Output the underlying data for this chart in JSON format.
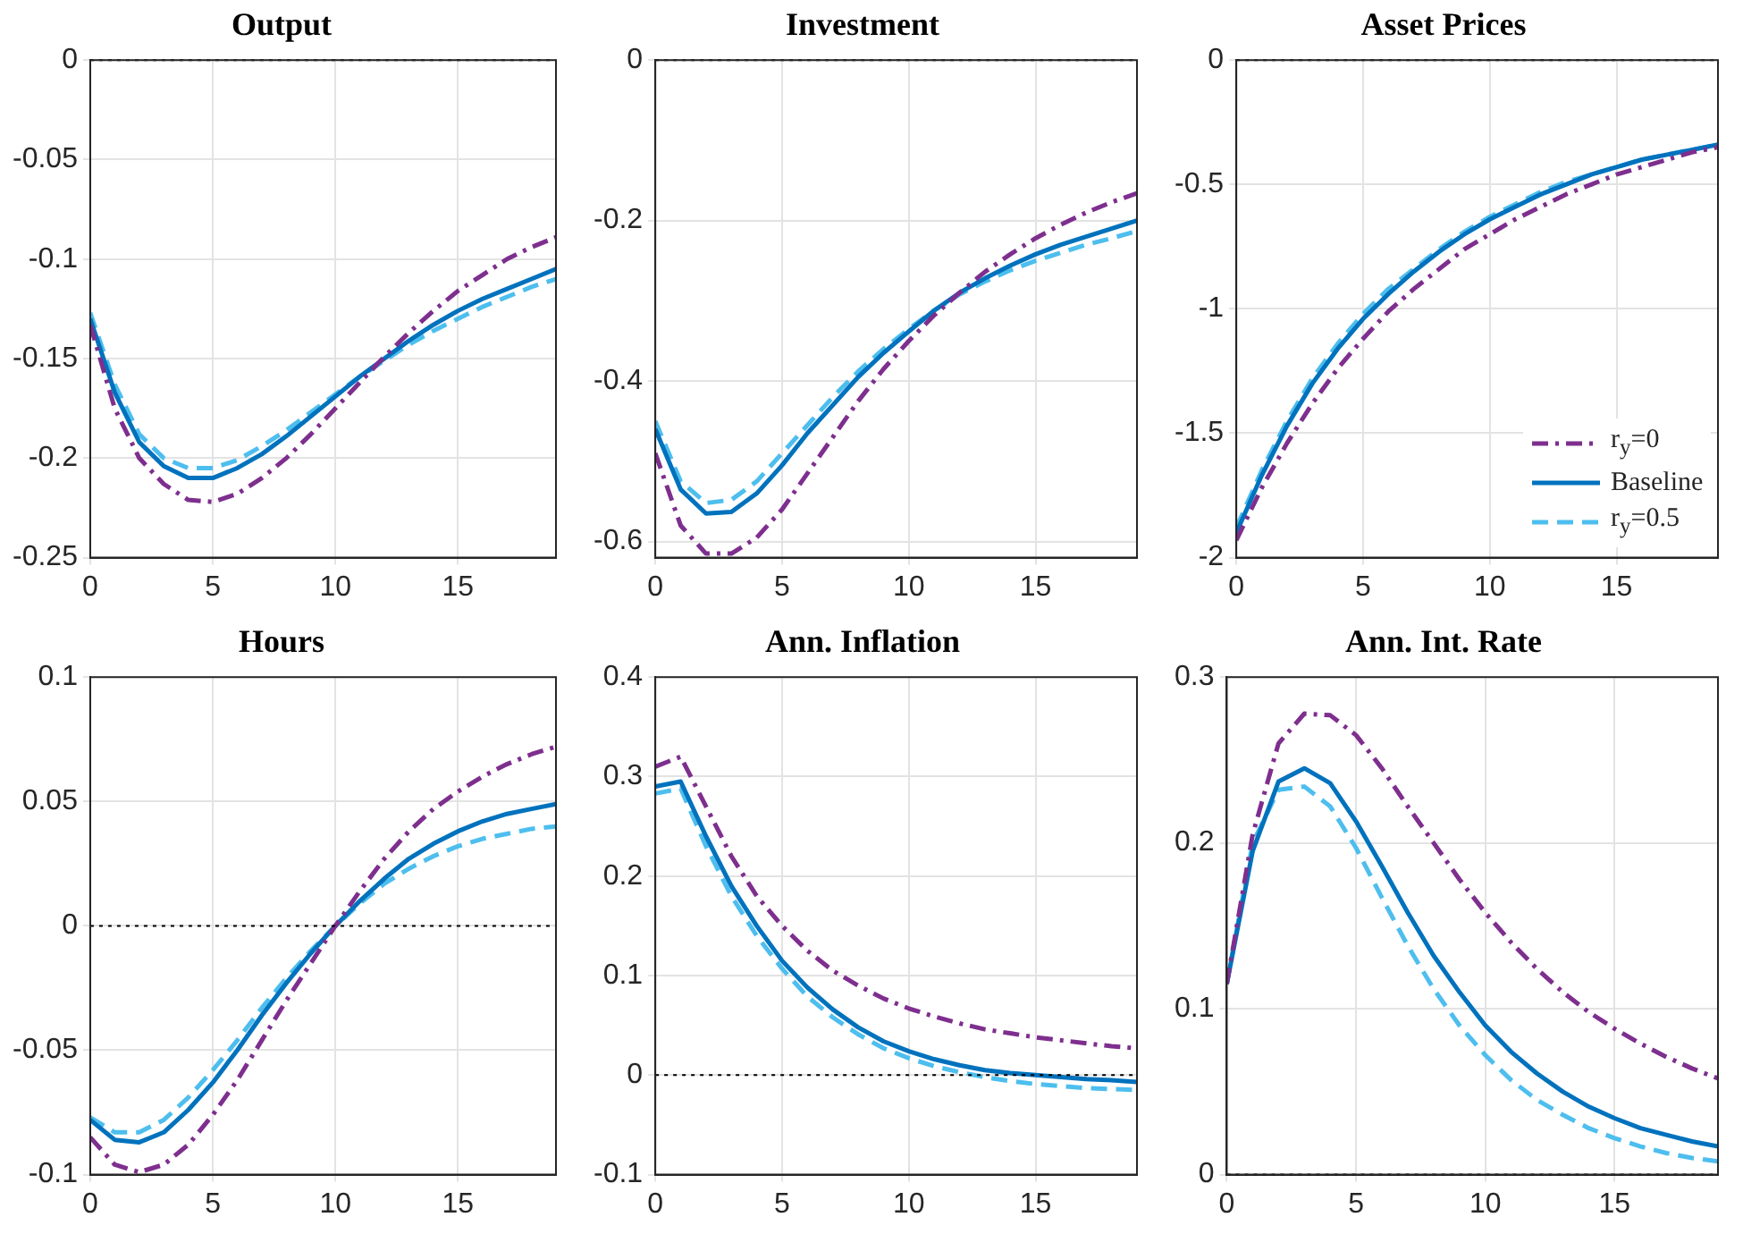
{
  "chart_data": [
    {
      "type": "line",
      "title": "Output",
      "x": [
        0,
        1,
        2,
        3,
        4,
        5,
        6,
        7,
        8,
        9,
        10,
        11,
        12,
        13,
        14,
        15,
        16,
        17,
        18,
        19
      ],
      "xlim": [
        0,
        19
      ],
      "xticks": [
        0,
        5,
        10,
        15
      ],
      "ylim": [
        -0.25,
        0
      ],
      "yticks": [
        -0.25,
        -0.2,
        -0.15,
        -0.1,
        -0.05,
        0
      ],
      "grid": true,
      "ref_lines": [
        {
          "axis": "y",
          "value": 0,
          "color": "#000000",
          "line_style": "dotted"
        }
      ],
      "series": [
        {
          "color": "#7e2f8e",
          "line_style": "dashdot",
          "values": [
            -0.133,
            -0.175,
            -0.2,
            -0.213,
            -0.221,
            -0.222,
            -0.218,
            -0.21,
            -0.2,
            -0.188,
            -0.175,
            -0.162,
            -0.149,
            -0.137,
            -0.126,
            -0.116,
            -0.108,
            -0.1,
            -0.094,
            -0.089
          ]
        },
        {
          "color": "#0072bd",
          "line_style": "solid",
          "values": [
            -0.13,
            -0.167,
            -0.192,
            -0.204,
            -0.21,
            -0.21,
            -0.205,
            -0.198,
            -0.189,
            -0.179,
            -0.169,
            -0.159,
            -0.15,
            -0.141,
            -0.133,
            -0.126,
            -0.12,
            -0.115,
            -0.11,
            -0.105
          ]
        },
        {
          "color": "#4dbeee",
          "line_style": "dashed",
          "values": [
            -0.127,
            -0.163,
            -0.188,
            -0.2,
            -0.205,
            -0.205,
            -0.201,
            -0.194,
            -0.186,
            -0.177,
            -0.168,
            -0.159,
            -0.151,
            -0.143,
            -0.136,
            -0.13,
            -0.124,
            -0.119,
            -0.114,
            -0.11
          ]
        }
      ]
    },
    {
      "type": "line",
      "title": "Investment",
      "x": [
        0,
        1,
        2,
        3,
        4,
        5,
        6,
        7,
        8,
        9,
        10,
        11,
        12,
        13,
        14,
        15,
        16,
        17,
        18,
        19
      ],
      "xlim": [
        0,
        19
      ],
      "xticks": [
        0,
        5,
        10,
        15
      ],
      "ylim": [
        -0.62,
        0
      ],
      "yticks": [
        -0.6,
        -0.4,
        -0.2,
        0
      ],
      "grid": true,
      "ref_lines": [
        {
          "axis": "y",
          "value": 0,
          "color": "#000000",
          "line_style": "dotted"
        }
      ],
      "series": [
        {
          "color": "#7e2f8e",
          "line_style": "dashdot",
          "values": [
            -0.49,
            -0.58,
            -0.615,
            -0.615,
            -0.595,
            -0.56,
            -0.515,
            -0.47,
            -0.425,
            -0.385,
            -0.35,
            -0.318,
            -0.29,
            -0.264,
            -0.242,
            -0.222,
            -0.205,
            -0.19,
            -0.177,
            -0.166
          ]
        },
        {
          "color": "#0072bd",
          "line_style": "solid",
          "values": [
            -0.46,
            -0.535,
            -0.565,
            -0.563,
            -0.54,
            -0.505,
            -0.465,
            -0.43,
            -0.395,
            -0.365,
            -0.338,
            -0.312,
            -0.29,
            -0.272,
            -0.256,
            -0.242,
            -0.23,
            -0.22,
            -0.21,
            -0.2
          ]
        },
        {
          "color": "#4dbeee",
          "line_style": "dashed",
          "values": [
            -0.45,
            -0.525,
            -0.552,
            -0.548,
            -0.525,
            -0.49,
            -0.455,
            -0.42,
            -0.388,
            -0.36,
            -0.335,
            -0.312,
            -0.292,
            -0.276,
            -0.262,
            -0.25,
            -0.24,
            -0.23,
            -0.222,
            -0.213
          ]
        }
      ]
    },
    {
      "type": "line",
      "title": "Asset Prices",
      "x": [
        0,
        1,
        2,
        3,
        4,
        5,
        6,
        7,
        8,
        9,
        10,
        11,
        12,
        13,
        14,
        15,
        16,
        17,
        18,
        19
      ],
      "xlim": [
        0,
        19
      ],
      "xticks": [
        0,
        5,
        10,
        15
      ],
      "ylim": [
        -2,
        0
      ],
      "yticks": [
        -2,
        -1.5,
        -1,
        -0.5,
        0
      ],
      "grid": true,
      "legend": "bottom right",
      "ref_lines": [
        {
          "axis": "y",
          "value": 0,
          "color": "#000000",
          "line_style": "dotted"
        }
      ],
      "series": [
        {
          "name": "r$_{y}$=0",
          "color": "#7e2f8e",
          "line_style": "dashdot",
          "values": [
            -1.93,
            -1.72,
            -1.54,
            -1.38,
            -1.24,
            -1.12,
            -1.01,
            -0.92,
            -0.84,
            -0.76,
            -0.7,
            -0.64,
            -0.59,
            -0.54,
            -0.5,
            -0.46,
            -0.43,
            -0.4,
            -0.37,
            -0.35
          ]
        },
        {
          "name": "Baseline",
          "color": "#0072bd",
          "line_style": "solid",
          "values": [
            -1.9,
            -1.67,
            -1.47,
            -1.3,
            -1.16,
            -1.04,
            -0.94,
            -0.85,
            -0.77,
            -0.7,
            -0.64,
            -0.59,
            -0.54,
            -0.5,
            -0.46,
            -0.43,
            -0.4,
            -0.38,
            -0.36,
            -0.34
          ]
        },
        {
          "name": "r$_{y}$=0.5",
          "color": "#4dbeee",
          "line_style": "dashed",
          "values": [
            -1.88,
            -1.65,
            -1.45,
            -1.28,
            -1.14,
            -1.02,
            -0.92,
            -0.84,
            -0.76,
            -0.69,
            -0.63,
            -0.58,
            -0.53,
            -0.49,
            -0.46,
            -0.43,
            -0.4,
            -0.38,
            -0.36,
            -0.34
          ]
        }
      ]
    },
    {
      "type": "line",
      "title": "Hours",
      "x": [
        0,
        1,
        2,
        3,
        4,
        5,
        6,
        7,
        8,
        9,
        10,
        11,
        12,
        13,
        14,
        15,
        16,
        17,
        18,
        19
      ],
      "xlim": [
        0,
        19
      ],
      "xticks": [
        0,
        5,
        10,
        15
      ],
      "ylim": [
        -0.1,
        0.1
      ],
      "yticks": [
        -0.1,
        -0.05,
        0,
        0.05,
        0.1
      ],
      "grid": true,
      "ref_lines": [
        {
          "axis": "y",
          "value": 0,
          "color": "#000000",
          "line_style": "dotted"
        }
      ],
      "series": [
        {
          "color": "#7e2f8e",
          "line_style": "dashdot",
          "values": [
            -0.085,
            -0.096,
            -0.099,
            -0.096,
            -0.088,
            -0.076,
            -0.062,
            -0.046,
            -0.03,
            -0.015,
            0,
            0.014,
            0.027,
            0.038,
            0.047,
            0.054,
            0.06,
            0.065,
            0.069,
            0.072
          ]
        },
        {
          "color": "#0072bd",
          "line_style": "solid",
          "values": [
            -0.078,
            -0.086,
            -0.087,
            -0.083,
            -0.074,
            -0.063,
            -0.05,
            -0.036,
            -0.023,
            -0.011,
            0,
            0.01,
            0.019,
            0.027,
            0.033,
            0.038,
            0.042,
            0.045,
            0.047,
            0.049
          ]
        },
        {
          "color": "#4dbeee",
          "line_style": "dashed",
          "values": [
            -0.077,
            -0.083,
            -0.083,
            -0.078,
            -0.069,
            -0.058,
            -0.046,
            -0.033,
            -0.021,
            -0.01,
            0,
            0.009,
            0.017,
            0.023,
            0.028,
            0.032,
            0.035,
            0.037,
            0.039,
            0.04
          ]
        }
      ]
    },
    {
      "type": "line",
      "title": "Ann. Inflation",
      "x": [
        0,
        1,
        2,
        3,
        4,
        5,
        6,
        7,
        8,
        9,
        10,
        11,
        12,
        13,
        14,
        15,
        16,
        17,
        18,
        19
      ],
      "xlim": [
        0,
        19
      ],
      "xticks": [
        0,
        5,
        10,
        15
      ],
      "ylim": [
        -0.1,
        0.4
      ],
      "yticks": [
        -0.1,
        0,
        0.1,
        0.2,
        0.3,
        0.4
      ],
      "grid": true,
      "ref_lines": [
        {
          "axis": "y",
          "value": 0,
          "color": "#000000",
          "line_style": "dotted"
        }
      ],
      "series": [
        {
          "color": "#7e2f8e",
          "line_style": "dashdot",
          "values": [
            0.31,
            0.32,
            0.27,
            0.22,
            0.18,
            0.15,
            0.125,
            0.105,
            0.09,
            0.077,
            0.067,
            0.059,
            0.052,
            0.046,
            0.042,
            0.038,
            0.035,
            0.032,
            0.029,
            0.027
          ]
        },
        {
          "color": "#0072bd",
          "line_style": "solid",
          "values": [
            0.29,
            0.295,
            0.24,
            0.19,
            0.15,
            0.115,
            0.088,
            0.066,
            0.048,
            0.034,
            0.024,
            0.016,
            0.01,
            0.005,
            0.002,
            0,
            -0.002,
            -0.004,
            -0.005,
            -0.007
          ]
        },
        {
          "color": "#4dbeee",
          "line_style": "dashed",
          "values": [
            0.283,
            0.288,
            0.23,
            0.18,
            0.14,
            0.107,
            0.079,
            0.058,
            0.041,
            0.027,
            0.017,
            0.009,
            0.003,
            -0.002,
            -0.006,
            -0.009,
            -0.011,
            -0.013,
            -0.014,
            -0.015
          ]
        }
      ]
    },
    {
      "type": "line",
      "title": "Ann. Int. Rate",
      "x": [
        0,
        1,
        2,
        3,
        4,
        5,
        6,
        7,
        8,
        9,
        10,
        11,
        12,
        13,
        14,
        15,
        16,
        17,
        18,
        19
      ],
      "xlim": [
        0,
        19
      ],
      "xticks": [
        0,
        5,
        10,
        15
      ],
      "ylim": [
        0,
        0.3
      ],
      "yticks": [
        0,
        0.1,
        0.2,
        0.3
      ],
      "grid": true,
      "ref_lines": [
        {
          "axis": "y",
          "value": 0,
          "color": "#000000",
          "line_style": "dotted"
        }
      ],
      "series": [
        {
          "color": "#7e2f8e",
          "line_style": "dashdot",
          "values": [
            0.115,
            0.205,
            0.26,
            0.278,
            0.277,
            0.265,
            0.245,
            0.222,
            0.2,
            0.178,
            0.158,
            0.14,
            0.124,
            0.11,
            0.098,
            0.088,
            0.079,
            0.071,
            0.064,
            0.058
          ]
        },
        {
          "color": "#0072bd",
          "line_style": "solid",
          "values": [
            0.115,
            0.195,
            0.237,
            0.245,
            0.236,
            0.213,
            0.186,
            0.158,
            0.132,
            0.11,
            0.09,
            0.074,
            0.061,
            0.05,
            0.041,
            0.034,
            0.028,
            0.024,
            0.02,
            0.017
          ]
        },
        {
          "color": "#4dbeee",
          "line_style": "dashed",
          "values": [
            0.115,
            0.2,
            0.232,
            0.234,
            0.222,
            0.197,
            0.167,
            0.138,
            0.112,
            0.09,
            0.072,
            0.057,
            0.045,
            0.036,
            0.028,
            0.022,
            0.017,
            0.013,
            0.01,
            0.008
          ]
        }
      ]
    }
  ]
}
